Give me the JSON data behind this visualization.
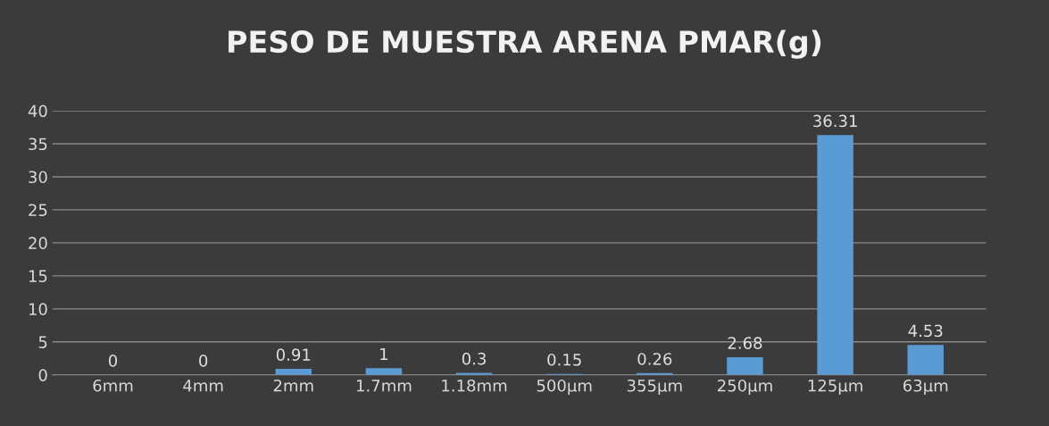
{
  "chart_data": {
    "type": "bar",
    "title": "PESO DE MUESTRA ARENA PMAR(g)",
    "categories": [
      "6mm",
      "4mm",
      "2mm",
      "1.7mm",
      "1.18mm",
      "500µm",
      "355µm",
      "250µm",
      "125µm",
      "63µm"
    ],
    "values": [
      0,
      0,
      0.91,
      1,
      0.3,
      0.15,
      0.26,
      2.68,
      36.31,
      4.53
    ],
    "color": "#5b9bd5",
    "ylim": [
      0,
      40
    ],
    "yticks": [
      0,
      5,
      10,
      15,
      20,
      25,
      30,
      35,
      40
    ],
    "grid": "y",
    "data_labels": true
  }
}
